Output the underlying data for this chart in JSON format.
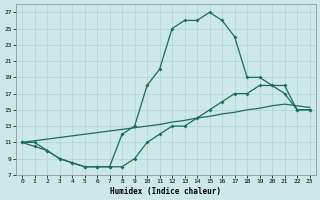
{
  "xlabel": "Humidex (Indice chaleur)",
  "xlim": [
    -0.5,
    23.5
  ],
  "ylim": [
    7,
    28
  ],
  "yticks": [
    7,
    9,
    11,
    13,
    15,
    17,
    19,
    21,
    23,
    25,
    27
  ],
  "xticks": [
    0,
    1,
    2,
    3,
    4,
    5,
    6,
    7,
    8,
    9,
    10,
    11,
    12,
    13,
    14,
    15,
    16,
    17,
    18,
    19,
    20,
    21,
    22,
    23
  ],
  "bg_color": "#cce8e8",
  "line_color": "#1e6b5e",
  "grid_color": "#b0d4d4",
  "line1_x": [
    0,
    1,
    2,
    3,
    4,
    5,
    6,
    7,
    8,
    9,
    10,
    11,
    12,
    13,
    14,
    15,
    16,
    17,
    18,
    19,
    20,
    21,
    22,
    23
  ],
  "line1_y": [
    11,
    11,
    10,
    9,
    8.5,
    8,
    8,
    8,
    12,
    13,
    18,
    20,
    25,
    26,
    26,
    27,
    26,
    24,
    19,
    19,
    18,
    17,
    15,
    15
  ],
  "line2_x": [
    0,
    1,
    2,
    3,
    4,
    5,
    6,
    7,
    8,
    9,
    10,
    11,
    12,
    13,
    14,
    15,
    16,
    17,
    18,
    19,
    20,
    21,
    22,
    23
  ],
  "line2_y": [
    11,
    10.5,
    10,
    9,
    8.5,
    8,
    8,
    8,
    8,
    9,
    11,
    12,
    13,
    13,
    14,
    15,
    16,
    17,
    17,
    18,
    18,
    18,
    15,
    15
  ],
  "line3_x": [
    0,
    1,
    2,
    3,
    4,
    5,
    6,
    7,
    8,
    9,
    10,
    11,
    12,
    13,
    14,
    15,
    16,
    17,
    18,
    19,
    20,
    21,
    22,
    23
  ],
  "line3_y": [
    11,
    11.2,
    11.4,
    11.6,
    11.8,
    12,
    12.2,
    12.4,
    12.6,
    12.8,
    13,
    13.2,
    13.5,
    13.7,
    14,
    14.2,
    14.5,
    14.7,
    15,
    15.2,
    15.5,
    15.7,
    15.5,
    15.3
  ]
}
